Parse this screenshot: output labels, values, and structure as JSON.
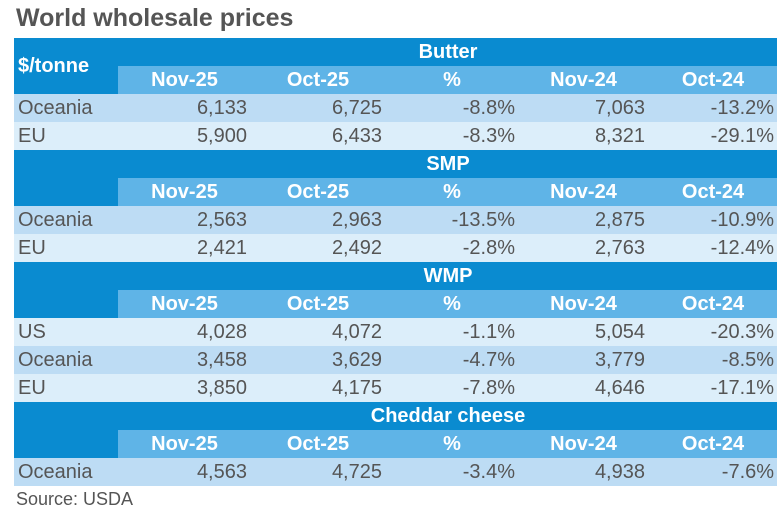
{
  "title": "World wholesale prices",
  "unit": "$/tonne",
  "columns": [
    "Nov-25",
    "Oct-25",
    "%",
    "Nov-24",
    "Oct-24"
  ],
  "sections": [
    {
      "name": "Butter",
      "rows": [
        [
          "Oceania",
          "6,133",
          "6,725",
          "-8.8%",
          "7,063",
          "-13.2%"
        ],
        [
          "EU",
          "5,900",
          "6,433",
          "-8.3%",
          "8,321",
          "-29.1%"
        ]
      ]
    },
    {
      "name": "SMP",
      "rows": [
        [
          "Oceania",
          "2,563",
          "2,963",
          "-13.5%",
          "2,875",
          "-10.9%"
        ],
        [
          "EU",
          "2,421",
          "2,492",
          "-2.8%",
          "2,763",
          "-12.4%"
        ]
      ]
    },
    {
      "name": "WMP",
      "rows": [
        [
          "US",
          "4,028",
          "4,072",
          "-1.1%",
          "5,054",
          "-20.3%"
        ],
        [
          "Oceania",
          "3,458",
          "3,629",
          "-4.7%",
          "3,779",
          "-8.5%"
        ],
        [
          "EU",
          "3,850",
          "4,175",
          "-7.8%",
          "4,646",
          "-17.1%"
        ]
      ]
    },
    {
      "name": "Cheddar cheese",
      "rows": [
        [
          "Oceania",
          "4,563",
          "4,725",
          "-3.4%",
          "4,938",
          "-7.6%"
        ]
      ]
    }
  ],
  "source": "Source: USDA",
  "colors": {
    "header": "#0a8bd0",
    "subheader": "#5fb4e7",
    "row_dark": "#bddcf4",
    "row_light": "#dceefa"
  }
}
